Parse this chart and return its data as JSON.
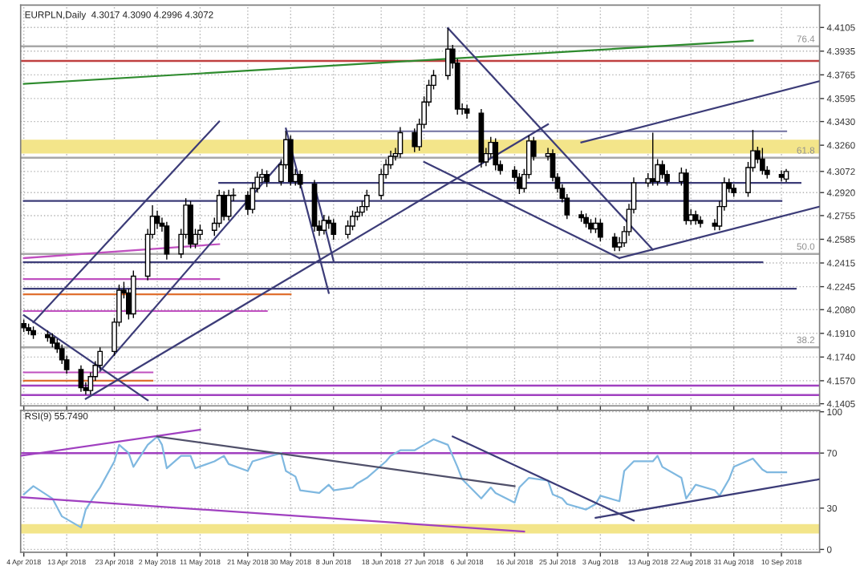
{
  "chart_data": [
    {
      "type": "candlestick",
      "title": "EURPLN,Daily  4.3017 4.3090 4.2996 4.3072",
      "tick_labels": "y",
      "grid": true,
      "x": [
        "2018-04-04",
        "2018-04-05",
        "2018-04-06",
        "2018-04-09",
        "2018-04-10",
        "2018-04-11",
        "2018-04-12",
        "2018-04-13",
        "2018-04-16",
        "2018-04-17",
        "2018-04-18",
        "2018-04-19",
        "2018-04-20",
        "2018-04-23",
        "2018-04-24",
        "2018-04-25",
        "2018-04-26",
        "2018-04-27",
        "2018-04-30",
        "2018-05-01",
        "2018-05-02",
        "2018-05-03",
        "2018-05-04",
        "2018-05-07",
        "2018-05-08",
        "2018-05-09",
        "2018-05-10",
        "2018-05-11",
        "2018-05-14",
        "2018-05-15",
        "2018-05-16",
        "2018-05-17",
        "2018-05-18",
        "2018-05-21",
        "2018-05-22",
        "2018-05-23",
        "2018-05-24",
        "2018-05-25",
        "2018-05-28",
        "2018-05-29",
        "2018-05-30",
        "2018-05-31",
        "2018-06-01",
        "2018-06-04",
        "2018-06-05",
        "2018-06-06",
        "2018-06-07",
        "2018-06-08",
        "2018-06-11",
        "2018-06-12",
        "2018-06-13",
        "2018-06-14",
        "2018-06-15",
        "2018-06-18",
        "2018-06-19",
        "2018-06-20",
        "2018-06-21",
        "2018-06-22",
        "2018-06-25",
        "2018-06-26",
        "2018-06-27",
        "2018-06-28",
        "2018-06-29",
        "2018-07-02",
        "2018-07-03",
        "2018-07-04",
        "2018-07-05",
        "2018-07-06",
        "2018-07-09",
        "2018-07-10",
        "2018-07-11",
        "2018-07-12",
        "2018-07-13",
        "2018-07-16",
        "2018-07-17",
        "2018-07-18",
        "2018-07-19",
        "2018-07-20",
        "2018-07-23",
        "2018-07-24",
        "2018-07-25",
        "2018-07-26",
        "2018-07-27",
        "2018-07-30",
        "2018-07-31",
        "2018-08-01",
        "2018-08-02",
        "2018-08-03",
        "2018-08-06",
        "2018-08-07",
        "2018-08-08",
        "2018-08-09",
        "2018-08-10",
        "2018-08-13",
        "2018-08-14",
        "2018-08-15",
        "2018-08-16",
        "2018-08-17",
        "2018-08-20",
        "2018-08-21",
        "2018-08-22",
        "2018-08-23",
        "2018-08-24",
        "2018-08-27",
        "2018-08-28",
        "2018-08-29",
        "2018-08-30",
        "2018-08-31",
        "2018-09-03",
        "2018-09-04",
        "2018-09-05",
        "2018-09-06",
        "2018-09-07",
        "2018-09-10",
        "2018-09-11"
      ],
      "ohlc": [
        [
          4.198,
          4.201,
          4.192,
          4.195
        ],
        [
          4.195,
          4.198,
          4.19,
          4.193
        ],
        [
          4.193,
          4.196,
          4.187,
          4.19
        ],
        [
          4.19,
          4.193,
          4.185,
          4.188
        ],
        [
          4.188,
          4.191,
          4.181,
          4.184
        ],
        [
          4.184,
          4.187,
          4.177,
          4.18
        ],
        [
          4.18,
          4.183,
          4.169,
          4.172
        ],
        [
          4.172,
          4.175,
          4.162,
          4.165
        ],
        [
          4.165,
          4.168,
          4.149,
          4.152
        ],
        [
          4.152,
          4.156,
          4.147,
          4.15
        ],
        [
          4.15,
          4.163,
          4.147,
          4.16
        ],
        [
          4.16,
          4.171,
          4.157,
          4.168
        ],
        [
          4.168,
          4.181,
          4.165,
          4.178
        ],
        [
          4.178,
          4.202,
          4.175,
          4.199
        ],
        [
          4.199,
          4.226,
          4.196,
          4.222
        ],
        [
          4.222,
          4.228,
          4.216,
          4.22
        ],
        [
          4.22,
          4.223,
          4.201,
          4.205
        ],
        [
          4.205,
          4.236,
          4.202,
          4.232
        ],
        [
          4.232,
          4.266,
          4.229,
          4.262
        ],
        [
          4.262,
          4.283,
          4.259,
          4.275
        ],
        [
          4.275,
          4.279,
          4.266,
          4.27
        ],
        [
          4.27,
          4.274,
          4.264,
          4.268
        ],
        [
          4.268,
          4.271,
          4.244,
          4.248
        ],
        [
          4.248,
          4.266,
          4.245,
          4.262
        ],
        [
          4.262,
          4.288,
          4.259,
          4.283
        ],
        [
          4.283,
          4.286,
          4.252,
          4.255
        ],
        [
          4.255,
          4.266,
          4.252,
          4.262
        ],
        [
          4.262,
          4.269,
          4.258,
          4.265
        ],
        [
          4.265,
          4.274,
          4.261,
          4.27
        ],
        [
          4.27,
          4.294,
          4.267,
          4.29
        ],
        [
          4.29,
          4.293,
          4.272,
          4.275
        ],
        [
          4.275,
          4.294,
          4.272,
          4.29
        ],
        [
          4.29,
          4.295,
          4.286,
          4.29
        ],
        [
          4.29,
          4.293,
          4.276,
          4.28
        ],
        [
          4.28,
          4.299,
          4.277,
          4.295
        ],
        [
          4.295,
          4.307,
          4.292,
          4.303
        ],
        [
          4.303,
          4.309,
          4.299,
          4.305
        ],
        [
          4.305,
          4.308,
          4.296,
          4.3
        ],
        [
          4.3,
          4.316,
          4.297,
          4.312
        ],
        [
          4.312,
          4.336,
          4.309,
          4.33
        ],
        [
          4.33,
          4.333,
          4.297,
          4.3
        ],
        [
          4.3,
          4.309,
          4.297,
          4.305
        ],
        [
          4.305,
          4.308,
          4.295,
          4.298
        ],
        [
          4.298,
          4.301,
          4.264,
          4.268
        ],
        [
          4.268,
          4.272,
          4.261,
          4.265
        ],
        [
          4.265,
          4.276,
          4.262,
          4.272
        ],
        [
          4.272,
          4.275,
          4.266,
          4.27
        ],
        [
          4.27,
          4.273,
          4.258,
          4.262
        ],
        [
          4.262,
          4.272,
          4.259,
          4.268
        ],
        [
          4.268,
          4.279,
          4.265,
          4.275
        ],
        [
          4.275,
          4.282,
          4.272,
          4.278
        ],
        [
          4.278,
          4.286,
          4.275,
          4.282
        ],
        [
          4.282,
          4.294,
          4.279,
          4.29
        ],
        [
          4.29,
          4.309,
          4.287,
          4.305
        ],
        [
          4.305,
          4.316,
          4.302,
          4.312
        ],
        [
          4.312,
          4.322,
          4.309,
          4.318
        ],
        [
          4.318,
          4.324,
          4.315,
          4.32
        ],
        [
          4.32,
          4.339,
          4.317,
          4.335
        ],
        [
          4.335,
          4.338,
          4.321,
          4.325
        ],
        [
          4.325,
          4.345,
          4.322,
          4.341
        ],
        [
          4.341,
          4.361,
          4.338,
          4.357
        ],
        [
          4.357,
          4.373,
          4.354,
          4.369
        ],
        [
          4.369,
          4.38,
          4.366,
          4.376
        ],
        [
          4.376,
          4.41,
          4.373,
          4.395
        ],
        [
          4.395,
          4.398,
          4.381,
          4.385
        ],
        [
          4.385,
          4.388,
          4.348,
          4.352
        ],
        [
          4.352,
          4.356,
          4.348,
          4.352
        ],
        [
          4.352,
          4.355,
          4.345,
          4.349
        ],
        [
          4.349,
          4.352,
          4.31,
          4.314
        ],
        [
          4.314,
          4.324,
          4.311,
          4.32
        ],
        [
          4.32,
          4.332,
          4.317,
          4.328
        ],
        [
          4.328,
          4.331,
          4.308,
          4.312
        ],
        [
          4.312,
          4.315,
          4.305,
          4.308
        ],
        [
          4.308,
          4.311,
          4.3,
          4.303
        ],
        [
          4.303,
          4.306,
          4.291,
          4.295
        ],
        [
          4.295,
          4.309,
          4.292,
          4.305
        ],
        [
          4.305,
          4.333,
          4.302,
          4.329
        ],
        [
          4.329,
          4.332,
          4.315,
          4.318
        ],
        [
          4.318,
          4.324,
          4.315,
          4.32
        ],
        [
          4.32,
          4.323,
          4.3,
          4.303
        ],
        [
          4.303,
          4.306,
          4.292,
          4.295
        ],
        [
          4.295,
          4.298,
          4.285,
          4.288
        ],
        [
          4.288,
          4.291,
          4.273,
          4.276
        ],
        [
          4.276,
          4.279,
          4.271,
          4.274
        ],
        [
          4.274,
          4.277,
          4.267,
          4.27
        ],
        [
          4.27,
          4.273,
          4.263,
          4.266
        ],
        [
          4.266,
          4.274,
          4.263,
          4.27
        ],
        [
          4.27,
          4.273,
          4.257,
          4.26
        ],
        [
          4.26,
          4.263,
          4.25,
          4.253
        ],
        [
          4.253,
          4.26,
          4.25,
          4.256
        ],
        [
          4.256,
          4.268,
          4.253,
          4.264
        ],
        [
          4.264,
          4.284,
          4.261,
          4.28
        ],
        [
          4.28,
          4.303,
          4.277,
          4.299
        ],
        [
          4.299,
          4.306,
          4.296,
          4.302
        ],
        [
          4.302,
          4.335,
          4.297,
          4.3
        ],
        [
          4.3,
          4.316,
          4.297,
          4.312
        ],
        [
          4.312,
          4.315,
          4.302,
          4.305
        ],
        [
          4.305,
          4.308,
          4.297,
          4.3
        ],
        [
          4.3,
          4.31,
          4.297,
          4.306
        ],
        [
          4.306,
          4.309,
          4.269,
          4.272
        ],
        [
          4.272,
          4.28,
          4.269,
          4.276
        ],
        [
          4.276,
          4.279,
          4.269,
          4.272
        ],
        [
          4.272,
          4.275,
          4.267,
          4.27
        ],
        [
          4.27,
          4.273,
          4.265,
          4.268
        ],
        [
          4.268,
          4.286,
          4.265,
          4.282
        ],
        [
          4.282,
          4.303,
          4.279,
          4.299
        ],
        [
          4.299,
          4.302,
          4.292,
          4.295
        ],
        [
          4.295,
          4.298,
          4.289,
          4.292
        ],
        [
          4.292,
          4.314,
          4.289,
          4.31
        ],
        [
          4.31,
          4.337,
          4.307,
          4.322
        ],
        [
          4.322,
          4.325,
          4.313,
          4.316
        ],
        [
          4.316,
          4.324,
          4.305,
          4.308
        ],
        [
          4.308,
          4.311,
          4.302,
          4.305
        ],
        [
          4.305,
          4.308,
          4.3,
          4.303
        ],
        [
          4.3017,
          4.309,
          4.2996,
          4.3072
        ]
      ],
      "xlim": [
        "2018-04-03T08:00",
        "2018-09-18"
      ],
      "ylim": [
        4.139,
        4.4265
      ],
      "xticks": [
        {
          "value": "2018-04-04",
          "label": null
        },
        {
          "value": "2018-04-13",
          "label": null
        },
        {
          "value": "2018-04-23",
          "label": null
        },
        {
          "value": "2018-05-02",
          "label": null
        },
        {
          "value": "2018-05-11",
          "label": null
        },
        {
          "value": "2018-05-21",
          "label": null
        },
        {
          "value": "2018-05-30",
          "label": null
        },
        {
          "value": "2018-06-08",
          "label": null
        },
        {
          "value": "2018-06-18",
          "label": null
        },
        {
          "value": "2018-06-27",
          "label": null
        },
        {
          "value": "2018-07-06",
          "label": null
        },
        {
          "value": "2018-07-16",
          "label": null
        },
        {
          "value": "2018-07-25",
          "label": null
        },
        {
          "value": "2018-08-03",
          "label": null
        },
        {
          "value": "2018-08-13",
          "label": null
        },
        {
          "value": "2018-08-22",
          "label": null
        },
        {
          "value": "2018-08-31",
          "label": null
        },
        {
          "value": "2018-09-10",
          "label": null
        }
      ],
      "yticks": [
        4.4105,
        4.3935,
        4.3765,
        4.3595,
        {
          "value": 4.343,
          "label": "4.3430"
        },
        {
          "value": 4.326,
          "label": "4.3260"
        },
        4.3072,
        {
          "value": 4.292,
          "label": "4.2920"
        },
        4.2755,
        4.2585,
        4.2415,
        4.2245,
        {
          "value": 4.208,
          "label": "4.2080"
        },
        {
          "value": 4.191,
          "label": "4.1910"
        },
        {
          "value": 4.174,
          "label": "4.1740"
        },
        {
          "value": 4.157,
          "label": "4.1570"
        },
        4.1405
      ],
      "annotations": [
        {
          "text": "76.4",
          "x": "2018-09-17",
          "y": 4.397
        },
        {
          "text": "61.8",
          "x": "2018-09-17",
          "y": 4.317
        },
        {
          "text": "50.0",
          "x": "2018-09-17",
          "y": 4.248
        },
        {
          "text": "38.2",
          "x": "2018-09-17",
          "y": 4.181
        }
      ],
      "ref_lines": [
        {
          "axis": "y",
          "value": 4.3865,
          "color": "#c04040"
        },
        {
          "axis": "y",
          "value": 4.397,
          "color": "#a8a8a8"
        },
        {
          "axis": "y",
          "value": 4.317,
          "color": "#a8a8a8"
        },
        {
          "axis": "y",
          "value": 4.248,
          "color": "#a8a8a8"
        },
        {
          "axis": "y",
          "value": 4.181,
          "color": "#a8a8a8"
        },
        {
          "axis": "y",
          "value": 4.1535,
          "color": "#a040c0"
        },
        {
          "axis": "y",
          "value": 4.1467,
          "color": "#a040c0"
        }
      ],
      "bands": [
        {
          "axis": "y",
          "from": 4.32,
          "to": 4.33,
          "color": "#f3e58a"
        }
      ],
      "series": [
        {
          "type": "line",
          "color": "#2e8b2e",
          "x": [
            "2018-04-04",
            "2018-09-04"
          ],
          "values": [
            4.37,
            4.401
          ]
        },
        {
          "type": "line",
          "color": "#3c3c78",
          "x": [
            "2018-04-04",
            "2018-09-10"
          ],
          "values": [
            4.286,
            4.286
          ]
        },
        {
          "type": "line",
          "color": "#3c3c78",
          "x": [
            "2018-05-15",
            "2018-09-14"
          ],
          "values": [
            4.299,
            4.299
          ]
        },
        {
          "type": "line",
          "color": "#7070a0",
          "x": [
            "2018-05-29",
            "2018-09-11"
          ],
          "values": [
            4.336,
            4.336
          ]
        },
        {
          "type": "line",
          "color": "#3c3c78",
          "x": [
            "2018-04-04",
            "2018-09-06"
          ],
          "values": [
            4.242,
            4.242
          ]
        },
        {
          "type": "line",
          "color": "#3c3c78",
          "x": [
            "2018-04-04",
            "2018-09-13"
          ],
          "values": [
            4.223,
            4.223
          ]
        },
        {
          "type": "line",
          "color": "#c050c0",
          "x": [
            "2018-04-04",
            "2018-05-15"
          ],
          "values": [
            4.245,
            4.255
          ]
        },
        {
          "type": "line",
          "color": "#c050c0",
          "x": [
            "2018-04-04",
            "2018-05-15"
          ],
          "values": [
            4.23,
            4.23
          ]
        },
        {
          "type": "line",
          "color": "#e07030",
          "x": [
            "2018-04-04",
            "2018-05-30"
          ],
          "values": [
            4.219,
            4.219
          ]
        },
        {
          "type": "line",
          "color": "#c050c0",
          "x": [
            "2018-04-04",
            "2018-05-25"
          ],
          "values": [
            4.207,
            4.207
          ]
        },
        {
          "type": "line",
          "color": "#c050c0",
          "x": [
            "2018-04-04",
            "2018-05-01"
          ],
          "values": [
            4.163,
            4.163
          ]
        },
        {
          "type": "line",
          "color": "#e07030",
          "x": [
            "2018-04-04",
            "2018-05-01"
          ],
          "values": [
            4.157,
            4.157
          ]
        },
        {
          "type": "line",
          "color": "#3c3c78",
          "x": [
            "2018-04-06",
            "2018-05-15"
          ],
          "values": [
            4.199,
            4.343
          ]
        },
        {
          "type": "line",
          "color": "#3c3c78",
          "x": [
            "2018-04-20",
            "2018-05-28"
          ],
          "values": [
            4.164,
            4.314
          ]
        },
        {
          "type": "line",
          "color": "#3c3c78",
          "x": [
            "2018-04-17",
            "2018-07-23"
          ],
          "values": [
            4.144,
            4.341
          ]
        },
        {
          "type": "line",
          "color": "#3c3c78",
          "x": [
            "2018-04-04",
            "2018-04-30"
          ],
          "values": [
            4.204,
            4.143
          ]
        },
        {
          "type": "line",
          "color": "#3c3c78",
          "x": [
            "2018-05-29",
            "2018-06-07"
          ],
          "values": [
            4.338,
            4.22
          ]
        },
        {
          "type": "line",
          "color": "#3c3c78",
          "x": [
            "2018-06-04",
            "2018-06-08"
          ],
          "values": [
            4.297,
            4.243
          ]
        },
        {
          "type": "line",
          "color": "#3c3c78",
          "x": [
            "2018-07-02",
            "2018-08-14"
          ],
          "values": [
            4.41,
            4.251
          ]
        },
        {
          "type": "line",
          "color": "#3c3c78",
          "x": [
            "2018-06-27",
            "2018-08-07"
          ],
          "values": [
            4.314,
            4.245
          ]
        },
        {
          "type": "line",
          "color": "#3c3c78",
          "x": [
            "2018-08-07",
            "2018-09-18"
          ],
          "values": [
            4.245,
            4.282
          ]
        },
        {
          "type": "line",
          "color": "#3c3c78",
          "x": [
            "2018-07-30",
            "2018-09-18"
          ],
          "values": [
            4.328,
            4.372
          ]
        }
      ]
    },
    {
      "type": "line",
      "title": "RSI(9) 55.7490",
      "grid": true,
      "xlim": [
        "2018-04-03T08:00",
        "2018-09-18"
      ],
      "ylim": [
        -2,
        101
      ],
      "xticks": [
        {
          "value": "2018-04-04",
          "label": "4 Apr 2018"
        },
        {
          "value": "2018-04-13",
          "label": "13 Apr 2018"
        },
        {
          "value": "2018-04-23",
          "label": "23 Apr 2018"
        },
        {
          "value": "2018-05-02",
          "label": "2 May 2018"
        },
        {
          "value": "2018-05-11",
          "label": "11 May 2018"
        },
        {
          "value": "2018-05-21",
          "label": "21 May 2018"
        },
        {
          "value": "2018-05-30",
          "label": "30 May 2018"
        },
        {
          "value": "2018-06-08",
          "label": "8 Jun 2018"
        },
        {
          "value": "2018-06-18",
          "label": "18 Jun 2018"
        },
        {
          "value": "2018-06-27",
          "label": "27 Jun 2018"
        },
        {
          "value": "2018-07-06",
          "label": "6 Jul 2018"
        },
        {
          "value": "2018-07-16",
          "label": "16 Jul 2018"
        },
        {
          "value": "2018-07-25",
          "label": "25 Jul 2018"
        },
        {
          "value": "2018-08-03",
          "label": "3 Aug 2018"
        },
        {
          "value": "2018-08-13",
          "label": "13 Aug 2018"
        },
        {
          "value": "2018-08-22",
          "label": "22 Aug 2018"
        },
        {
          "value": "2018-08-31",
          "label": "31 Aug 2018"
        },
        {
          "value": "2018-09-10",
          "label": "10 Sep 2018"
        }
      ],
      "yticks": [
        0,
        30,
        70,
        100
      ],
      "ref_lines": [
        {
          "axis": "y",
          "value": 70,
          "color": "#a040c0"
        }
      ],
      "bands": [
        {
          "axis": "y",
          "from": 11.5,
          "to": 18.4,
          "color": "#f3e58a"
        }
      ],
      "series": [
        {
          "type": "line",
          "color": "#7fb8e0",
          "x": [
            "2018-04-04",
            "2018-04-06",
            "2018-04-10",
            "2018-04-12",
            "2018-04-16",
            "2018-04-17",
            "2018-04-19",
            "2018-04-20",
            "2018-04-23",
            "2018-04-24",
            "2018-04-26",
            "2018-04-27",
            "2018-04-30",
            "2018-05-02",
            "2018-05-03",
            "2018-05-04",
            "2018-05-07",
            "2018-05-09",
            "2018-05-10",
            "2018-05-14",
            "2018-05-16",
            "2018-05-17",
            "2018-05-21",
            "2018-05-22",
            "2018-05-24",
            "2018-05-28",
            "2018-05-29",
            "2018-05-31",
            "2018-06-01",
            "2018-06-05",
            "2018-06-07",
            "2018-06-08",
            "2018-06-12",
            "2018-06-13",
            "2018-06-15",
            "2018-06-19",
            "2018-06-20",
            "2018-06-22",
            "2018-06-25",
            "2018-06-27",
            "2018-06-29",
            "2018-07-02",
            "2018-07-04",
            "2018-07-05",
            "2018-07-09",
            "2018-07-11",
            "2018-07-12",
            "2018-07-16",
            "2018-07-17",
            "2018-07-19",
            "2018-07-23",
            "2018-07-24",
            "2018-07-26",
            "2018-07-27",
            "2018-07-31",
            "2018-08-02",
            "2018-08-03",
            "2018-08-07",
            "2018-08-08",
            "2018-08-10",
            "2018-08-14",
            "2018-08-15",
            "2018-08-16",
            "2018-08-20",
            "2018-08-21",
            "2018-08-23",
            "2018-08-27",
            "2018-08-28",
            "2018-08-30",
            "2018-08-31",
            "2018-09-04",
            "2018-09-06",
            "2018-09-07",
            "2018-09-11"
          ],
          "values": [
            40,
            46,
            37,
            24,
            16,
            29,
            40,
            45,
            64,
            76,
            70,
            60,
            76,
            82,
            76,
            59,
            68,
            68,
            59,
            64,
            68,
            62,
            57,
            64,
            66,
            70,
            57,
            53,
            43,
            41,
            47,
            43,
            45,
            48,
            52,
            64,
            68,
            72,
            72,
            76,
            80,
            76,
            60,
            51,
            37,
            45,
            41,
            34,
            45,
            52,
            50,
            40,
            37,
            33,
            29,
            33,
            39,
            35,
            57,
            64,
            64,
            68,
            60,
            52,
            37,
            47,
            43,
            39,
            51,
            60,
            66,
            58,
            56,
            56
          ]
        },
        {
          "type": "line",
          "color": "#a040c0",
          "x": [
            "2018-04-03T08:00",
            "2018-05-11"
          ],
          "values": [
            68,
            87
          ]
        },
        {
          "type": "line",
          "color": "#50506a",
          "x": [
            "2018-05-02",
            "2018-07-16"
          ],
          "values": [
            82,
            46
          ]
        },
        {
          "type": "line",
          "color": "#3c3c78",
          "x": [
            "2018-07-03",
            "2018-08-10"
          ],
          "values": [
            82,
            21
          ]
        },
        {
          "type": "line",
          "color": "#3c3c78",
          "x": [
            "2018-08-02",
            "2018-09-18"
          ],
          "values": [
            23,
            51
          ]
        },
        {
          "type": "line",
          "color": "#a040c0",
          "x": [
            "2018-04-03T08:00",
            "2018-07-18"
          ],
          "values": [
            38,
            13
          ]
        }
      ]
    }
  ]
}
